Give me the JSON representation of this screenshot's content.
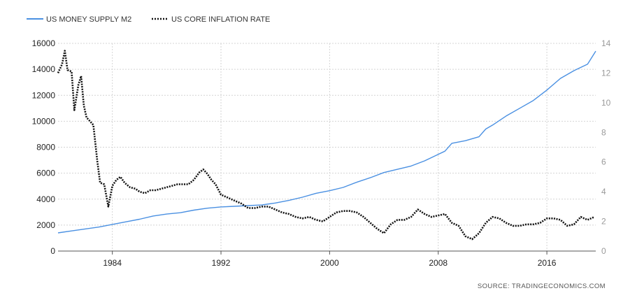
{
  "chart_data": {
    "type": "line",
    "legend": [
      {
        "name": "US MONEY SUPPLY M2",
        "color": "#4a90e2",
        "style": "solid"
      },
      {
        "name": "US CORE INFLATION RATE",
        "color": "#111111",
        "style": "dotted"
      }
    ],
    "legend_position": "top-left",
    "source": "SOURCE:  TRADINGECONOMICS.COM",
    "x_ticks": [
      1984,
      1992,
      2000,
      2008,
      2016
    ],
    "xlim": [
      1980.0,
      2019.6
    ],
    "y_left_ticks": [
      0,
      2000,
      4000,
      6000,
      8000,
      10000,
      12000,
      14000,
      16000
    ],
    "y_left_lim": [
      0,
      16000
    ],
    "y_right_ticks": [
      0,
      2,
      4,
      6,
      8,
      10,
      12,
      14
    ],
    "y_right_lim": [
      0,
      14
    ],
    "grid": true,
    "series": [
      {
        "name": "US MONEY SUPPLY M2",
        "axis": "left",
        "color": "#4a90e2",
        "x": [
          1980.0,
          1981.0,
          1982.0,
          1983.0,
          1984.0,
          1985.0,
          1986.0,
          1987.0,
          1988.0,
          1989.0,
          1990.0,
          1991.0,
          1992.0,
          1993.0,
          1994.0,
          1995.0,
          1996.0,
          1997.0,
          1998.0,
          1999.0,
          2000.0,
          2001.0,
          2002.0,
          2003.0,
          2004.0,
          2005.0,
          2006.0,
          2007.0,
          2008.0,
          2008.5,
          2009.0,
          2010.0,
          2011.0,
          2011.5,
          2012.0,
          2013.0,
          2014.0,
          2015.0,
          2016.0,
          2017.0,
          2018.0,
          2019.0,
          2019.6
        ],
        "y": [
          1400,
          1550,
          1700,
          1850,
          2050,
          2250,
          2450,
          2700,
          2850,
          2950,
          3150,
          3300,
          3400,
          3450,
          3500,
          3550,
          3700,
          3900,
          4150,
          4450,
          4650,
          4900,
          5300,
          5650,
          6050,
          6300,
          6550,
          6950,
          7450,
          7700,
          8300,
          8500,
          8800,
          9400,
          9700,
          10400,
          11000,
          11600,
          12400,
          13300,
          13900,
          14400,
          15400
        ]
      },
      {
        "name": "US CORE INFLATION RATE",
        "axis": "right",
        "color": "#111111",
        "x": [
          1980.0,
          1980.3,
          1980.5,
          1980.7,
          1981.0,
          1981.2,
          1981.5,
          1981.7,
          1981.9,
          1982.1,
          1982.3,
          1982.6,
          1982.9,
          1983.1,
          1983.4,
          1983.7,
          1984.0,
          1984.3,
          1984.6,
          1984.9,
          1985.3,
          1985.7,
          1986.0,
          1986.4,
          1986.8,
          1987.2,
          1987.6,
          1988.0,
          1988.4,
          1988.8,
          1989.2,
          1989.6,
          1990.0,
          1990.4,
          1990.7,
          1991.0,
          1991.3,
          1991.6,
          1992.0,
          1992.5,
          1993.0,
          1993.5,
          1994.0,
          1994.5,
          1995.0,
          1995.5,
          1996.0,
          1996.5,
          1997.0,
          1997.5,
          1998.0,
          1998.5,
          1999.0,
          1999.5,
          2000.0,
          2000.5,
          2001.0,
          2001.5,
          2002.0,
          2002.5,
          2003.0,
          2003.5,
          2004.0,
          2004.5,
          2005.0,
          2005.5,
          2006.0,
          2006.5,
          2007.0,
          2007.5,
          2008.0,
          2008.5,
          2009.0,
          2009.5,
          2010.0,
          2010.5,
          2011.0,
          2011.5,
          2012.0,
          2012.5,
          2013.0,
          2013.5,
          2014.0,
          2014.5,
          2015.0,
          2015.5,
          2016.0,
          2016.5,
          2017.0,
          2017.5,
          2018.0,
          2018.5,
          2019.0,
          2019.5
        ],
        "y": [
          12.0,
          12.6,
          13.5,
          12.2,
          12.1,
          9.5,
          11.2,
          11.8,
          9.8,
          9.0,
          8.8,
          8.5,
          6.0,
          4.6,
          4.5,
          3.0,
          4.4,
          4.8,
          5.0,
          4.6,
          4.3,
          4.2,
          4.0,
          3.9,
          4.1,
          4.1,
          4.2,
          4.3,
          4.4,
          4.5,
          4.5,
          4.5,
          4.8,
          5.3,
          5.5,
          5.2,
          4.8,
          4.5,
          3.8,
          3.6,
          3.4,
          3.2,
          2.9,
          2.9,
          3.0,
          3.0,
          2.8,
          2.6,
          2.5,
          2.3,
          2.2,
          2.3,
          2.1,
          2.0,
          2.3,
          2.6,
          2.7,
          2.7,
          2.6,
          2.3,
          1.9,
          1.5,
          1.2,
          1.8,
          2.1,
          2.1,
          2.3,
          2.8,
          2.5,
          2.3,
          2.4,
          2.5,
          1.9,
          1.7,
          1.0,
          0.8,
          1.2,
          1.9,
          2.3,
          2.2,
          1.9,
          1.7,
          1.7,
          1.8,
          1.8,
          1.9,
          2.2,
          2.2,
          2.1,
          1.7,
          1.8,
          2.3,
          2.1,
          2.3
        ]
      }
    ]
  }
}
